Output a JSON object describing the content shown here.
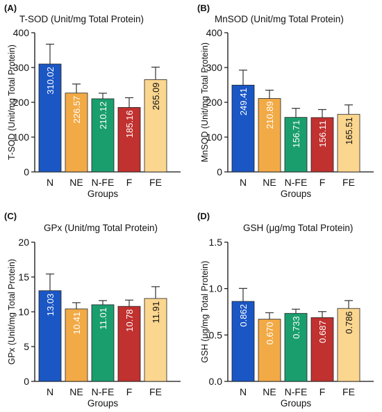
{
  "chart_data": [
    {
      "panel": "(A)",
      "type": "bar",
      "title": "T-SOD (Unit/mg Total Protein)",
      "xlabel": "Groups",
      "ylabel": "T-SOD (Unit/mg Total Protein)",
      "categories": [
        "N",
        "NE",
        "N-FE",
        "F",
        "FE"
      ],
      "values": [
        310.02,
        226.57,
        210.12,
        185.16,
        265.09
      ],
      "error": [
        57,
        26,
        16,
        28,
        36
      ],
      "value_labels": [
        "310.02",
        "226.57",
        "210.12",
        "185.16",
        "265.09"
      ],
      "ylim": [
        0,
        400
      ],
      "yticks": [
        0,
        100,
        200,
        300,
        400
      ],
      "ytick_labels": [
        "0",
        "100",
        "200",
        "300",
        "400"
      ]
    },
    {
      "panel": "(B)",
      "type": "bar",
      "title": "MnSOD (Unit/mg Total Protein)",
      "xlabel": "Groups",
      "ylabel": "MnSOD (Unit/mg Total Protein)",
      "categories": [
        "N",
        "NE",
        "N-FE",
        "F",
        "FE"
      ],
      "values": [
        249.41,
        210.89,
        156.71,
        156.11,
        165.51
      ],
      "error": [
        43,
        24,
        26,
        23,
        27
      ],
      "value_labels": [
        "249.41",
        "210.89",
        "156.71",
        "156.11",
        "165.51"
      ],
      "ylim": [
        0,
        400
      ],
      "yticks": [
        0,
        100,
        200,
        300,
        400
      ],
      "ytick_labels": [
        "0",
        "100",
        "200",
        "300",
        "400"
      ]
    },
    {
      "panel": "(C)",
      "type": "bar",
      "title": "GPx (Unit/mg Total Protein)",
      "xlabel": "Groups",
      "ylabel": "GPx (Unit/mg Total Protein)",
      "categories": [
        "N",
        "NE",
        "N-FE",
        "F",
        "FE"
      ],
      "values": [
        13.03,
        10.41,
        11.01,
        10.78,
        11.91
      ],
      "error": [
        2.4,
        0.9,
        0.6,
        0.9,
        1.7
      ],
      "value_labels": [
        "13.03",
        "10.41",
        "11.01",
        "10.78",
        "11.91"
      ],
      "ylim": [
        0,
        20
      ],
      "yticks": [
        0,
        5,
        10,
        15,
        20
      ],
      "ytick_labels": [
        "0",
        "5",
        "10",
        "15",
        "20"
      ]
    },
    {
      "panel": "(D)",
      "type": "bar",
      "title": "GSH (μg/mg Total Protein)",
      "xlabel": "Groups",
      "ylabel": "GSH (μg/mg Total Protein)",
      "categories": [
        "N",
        "NE",
        "N-FE",
        "F",
        "FE"
      ],
      "values": [
        0.862,
        0.67,
        0.733,
        0.687,
        0.786
      ],
      "error": [
        0.14,
        0.07,
        0.045,
        0.065,
        0.085
      ],
      "value_labels": [
        "0.862",
        "0.670",
        "0.733",
        "0.687",
        "0.786"
      ],
      "ylim": [
        0,
        1.5
      ],
      "yticks": [
        0,
        0.5,
        1.0,
        1.5
      ],
      "ytick_labels": [
        "0.0",
        "0.5",
        "1.0",
        "1.5"
      ]
    }
  ],
  "colors": {
    "bars": [
      "#1a56c4",
      "#f2aa46",
      "#1a9e6e",
      "#c0312f",
      "#fbd68f"
    ],
    "label_text": [
      "#ffffff",
      "#ffffff",
      "#ffffff",
      "#ffffff",
      "#111111"
    ],
    "axis": "#111111",
    "text": "#111111"
  }
}
